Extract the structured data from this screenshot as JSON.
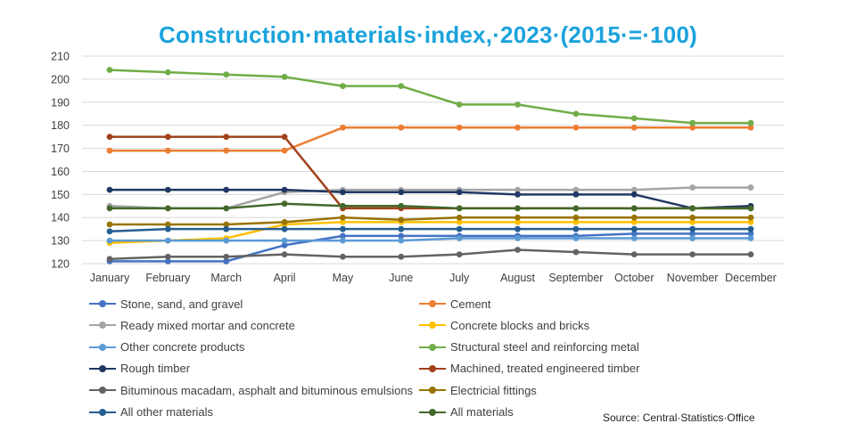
{
  "chart_data": {
    "type": "line",
    "title": "Construction·materials·index,·2023·(2015·=·100)",
    "xlabel": "",
    "ylabel": "",
    "ylim": [
      120,
      210
    ],
    "yticks": [
      120,
      130,
      140,
      150,
      160,
      170,
      180,
      190,
      200,
      210
    ],
    "grid": true,
    "legend_position": "bottom",
    "categories": [
      "January",
      "February",
      "March",
      "April",
      "May",
      "June",
      "July",
      "August",
      "September",
      "October",
      "November",
      "December"
    ],
    "series": [
      {
        "name": "Stone, sand, and gravel",
        "color": "#4472c4",
        "values": [
          121,
          121,
          121,
          128,
          132,
          132,
          132,
          132,
          132,
          133,
          133,
          133
        ]
      },
      {
        "name": "Cement",
        "color": "#ed7d31",
        "values": [
          169,
          169,
          169,
          169,
          179,
          179,
          179,
          179,
          179,
          179,
          179,
          179
        ]
      },
      {
        "name": "Ready mixed mortar and concrete",
        "color": "#a5a5a5",
        "values": [
          145,
          144,
          144,
          151,
          152,
          152,
          152,
          152,
          152,
          152,
          153,
          153
        ]
      },
      {
        "name": "Concrete blocks and bricks",
        "color": "#ffc000",
        "values": [
          129,
          130,
          131,
          137,
          138,
          138,
          138,
          138,
          138,
          138,
          138,
          138
        ]
      },
      {
        "name": "Other concrete products",
        "color": "#5b9bd5",
        "values": [
          130,
          130,
          130,
          130,
          130,
          130,
          131,
          131,
          131,
          131,
          131,
          131
        ]
      },
      {
        "name": "Structural steel and reinforcing metal",
        "color": "#70ad47",
        "values": [
          204,
          203,
          202,
          201,
          197,
          197,
          189,
          189,
          185,
          183,
          181,
          181
        ]
      },
      {
        "name": "Rough timber",
        "color": "#203864",
        "values": [
          152,
          152,
          152,
          152,
          151,
          151,
          151,
          150,
          150,
          150,
          144,
          145
        ]
      },
      {
        "name": "Machined, treated engineered timber",
        "color": "#a0401b",
        "values": [
          175,
          175,
          175,
          175,
          144,
          144,
          144,
          144,
          144,
          144,
          144,
          144
        ]
      },
      {
        "name": "Bituminous macadam, asphalt and bituminous emulsions",
        "color": "#636363",
        "values": [
          122,
          123,
          123,
          124,
          123,
          123,
          124,
          126,
          125,
          124,
          124,
          124
        ]
      },
      {
        "name": "Electricial fittings",
        "color": "#997300",
        "values": [
          137,
          137,
          137,
          138,
          140,
          139,
          140,
          140,
          140,
          140,
          140,
          140
        ]
      },
      {
        "name": "All other materials",
        "color": "#255e91",
        "values": [
          134,
          135,
          135,
          135,
          135,
          135,
          135,
          135,
          135,
          135,
          135,
          135
        ]
      },
      {
        "name": "All materials",
        "color": "#43682b",
        "values": [
          144,
          144,
          144,
          146,
          145,
          145,
          144,
          144,
          144,
          144,
          144,
          144
        ]
      }
    ]
  },
  "source": "Source: Central·Statistics·Office"
}
